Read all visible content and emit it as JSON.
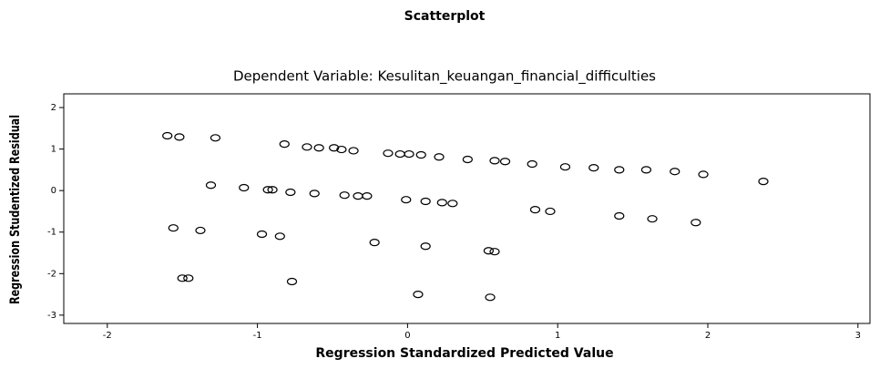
{
  "chart_data": {
    "type": "scatter",
    "title": "Scatterplot",
    "subtitle": "Dependent Variable: Kesulitan_keuangan_financial_difficulties",
    "x_label": "Regression Standardized Predicted Value",
    "y_label": "Regression Studentized Residual",
    "color": "#000000",
    "xlim": [
      -2.29,
      3.08
    ],
    "ylim": [
      -3.2,
      2.33
    ],
    "xticks": [
      -2,
      -1,
      0,
      1,
      2,
      3
    ],
    "yticks": [
      -3,
      -2,
      -1,
      0,
      1,
      2
    ],
    "x": [
      -1.6,
      -1.52,
      -1.28,
      -0.82,
      -0.67,
      -0.59,
      -0.49,
      -0.44,
      -0.36,
      -0.13,
      -0.05,
      0.01,
      0.09,
      0.21,
      0.4,
      0.58,
      0.65,
      0.83,
      1.05,
      1.24,
      1.41,
      1.59,
      1.78,
      1.97,
      -1.31,
      -1.09,
      -0.93,
      -0.9,
      -0.78,
      -0.62,
      -0.42,
      -0.33,
      -0.27,
      -0.01,
      0.12,
      0.23,
      0.3,
      2.37,
      -1.56,
      -1.38,
      -0.97,
      -0.85,
      -0.22,
      0.12,
      0.54,
      0.58,
      0.85,
      0.95,
      1.41,
      1.63,
      1.92,
      -1.5,
      -1.46,
      -0.77,
      0.07,
      0.55
    ],
    "values": [
      1.32,
      1.29,
      1.27,
      1.12,
      1.05,
      1.03,
      1.03,
      0.99,
      0.96,
      0.9,
      0.88,
      0.88,
      0.86,
      0.81,
      0.75,
      0.72,
      0.7,
      0.64,
      0.57,
      0.55,
      0.5,
      0.5,
      0.46,
      0.39,
      0.13,
      0.07,
      0.02,
      0.02,
      -0.04,
      -0.07,
      -0.11,
      -0.13,
      -0.13,
      -0.22,
      -0.26,
      -0.29,
      -0.31,
      0.22,
      -0.9,
      -0.96,
      -1.05,
      -1.1,
      -1.25,
      -1.34,
      -1.45,
      -1.47,
      -0.46,
      -0.5,
      -0.61,
      -0.68,
      -0.77,
      -2.11,
      -2.11,
      -2.19,
      -2.5,
      -2.57
    ]
  }
}
